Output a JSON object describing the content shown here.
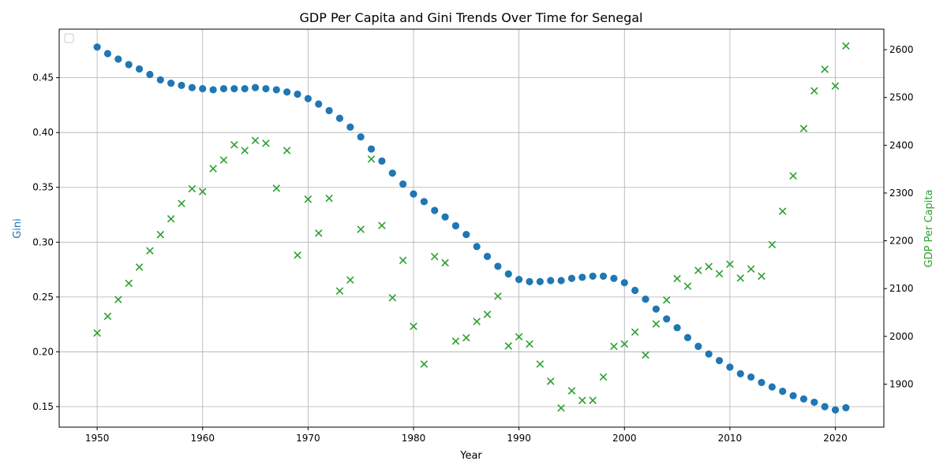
{
  "chart_data": {
    "type": "scatter",
    "title": "GDP Per Capita and Gini Trends Over Time for Senegal",
    "xlabel": "Year",
    "ylabel_left": "Gini",
    "ylabel_right": "GDP Per Capita",
    "xlim": [
      1946.4,
      2024.6
    ],
    "ylim_left": [
      0.1313,
      0.4943
    ],
    "ylim_right": [
      1810,
      2643
    ],
    "x_ticks": [
      1950,
      1960,
      1970,
      1980,
      1990,
      2000,
      2010,
      2020
    ],
    "y_left_ticks": [
      0.15,
      0.2,
      0.25,
      0.3,
      0.35,
      0.4,
      0.45
    ],
    "y_left_tick_labels": [
      "0.15",
      "0.20",
      "0.25",
      "0.30",
      "0.35",
      "0.40",
      "0.45"
    ],
    "y_right_ticks": [
      1900,
      2000,
      2100,
      2200,
      2300,
      2400,
      2500,
      2600
    ],
    "grid": true,
    "legend": "top-left (empty)",
    "colors": {
      "gini": "#1f77b4",
      "gdp": "#2ca02c",
      "grid": "#b0b0b0",
      "axis": "#000000"
    },
    "x": [
      1950,
      1951,
      1952,
      1953,
      1954,
      1955,
      1956,
      1957,
      1958,
      1959,
      1960,
      1961,
      1962,
      1963,
      1964,
      1965,
      1966,
      1967,
      1968,
      1969,
      1970,
      1971,
      1972,
      1973,
      1974,
      1975,
      1976,
      1977,
      1978,
      1979,
      1980,
      1981,
      1982,
      1983,
      1984,
      1985,
      1986,
      1987,
      1988,
      1989,
      1990,
      1991,
      1992,
      1993,
      1994,
      1995,
      1996,
      1997,
      1998,
      1999,
      2000,
      2001,
      2002,
      2003,
      2004,
      2005,
      2006,
      2007,
      2008,
      2009,
      2010,
      2011,
      2012,
      2013,
      2014,
      2015,
      2016,
      2017,
      2018,
      2019,
      2020,
      2021
    ],
    "series": [
      {
        "name": "Gini",
        "axis": "left",
        "marker": "circle",
        "values": [
          0.478,
          0.472,
          0.467,
          0.462,
          0.458,
          0.453,
          0.448,
          0.445,
          0.443,
          0.441,
          0.44,
          0.439,
          0.44,
          0.44,
          0.44,
          0.441,
          0.44,
          0.439,
          0.437,
          0.435,
          0.431,
          0.426,
          0.42,
          0.413,
          0.405,
          0.396,
          0.385,
          0.374,
          0.363,
          0.353,
          0.344,
          0.337,
          0.329,
          0.323,
          0.315,
          0.307,
          0.296,
          0.287,
          0.278,
          0.271,
          0.266,
          0.264,
          0.264,
          0.265,
          0.265,
          0.267,
          0.268,
          0.269,
          0.269,
          0.267,
          0.263,
          0.256,
          0.248,
          0.239,
          0.23,
          0.222,
          0.213,
          0.205,
          0.198,
          0.192,
          0.186,
          0.18,
          0.177,
          0.172,
          0.168,
          0.164,
          0.16,
          0.157,
          0.154,
          0.15,
          0.147,
          0.149
        ]
      },
      {
        "name": "GDP Per Capita",
        "axis": "right",
        "marker": "x",
        "values": [
          2007,
          2042,
          2077,
          2111,
          2145,
          2179,
          2213,
          2246,
          2278,
          2309,
          2303,
          2351,
          2369,
          2401,
          2389,
          2410,
          2404,
          2310,
          2389,
          2170,
          2287,
          2216,
          2289,
          2095,
          2118,
          2224,
          2371,
          2232,
          2081,
          2159,
          2021,
          1942,
          2167,
          2154,
          1990,
          1997,
          2031,
          2046,
          2084,
          1980,
          1999,
          1984,
          1942,
          1906,
          1850,
          1886,
          1866,
          1866,
          1915,
          1979,
          1984,
          2009,
          1961,
          2026,
          2076,
          2121,
          2105,
          2138,
          2146,
          2131,
          2151,
          2122,
          2141,
          2126,
          2192,
          2262,
          2336,
          2435,
          2514,
          2559,
          2524,
          2608
        ]
      }
    ]
  }
}
